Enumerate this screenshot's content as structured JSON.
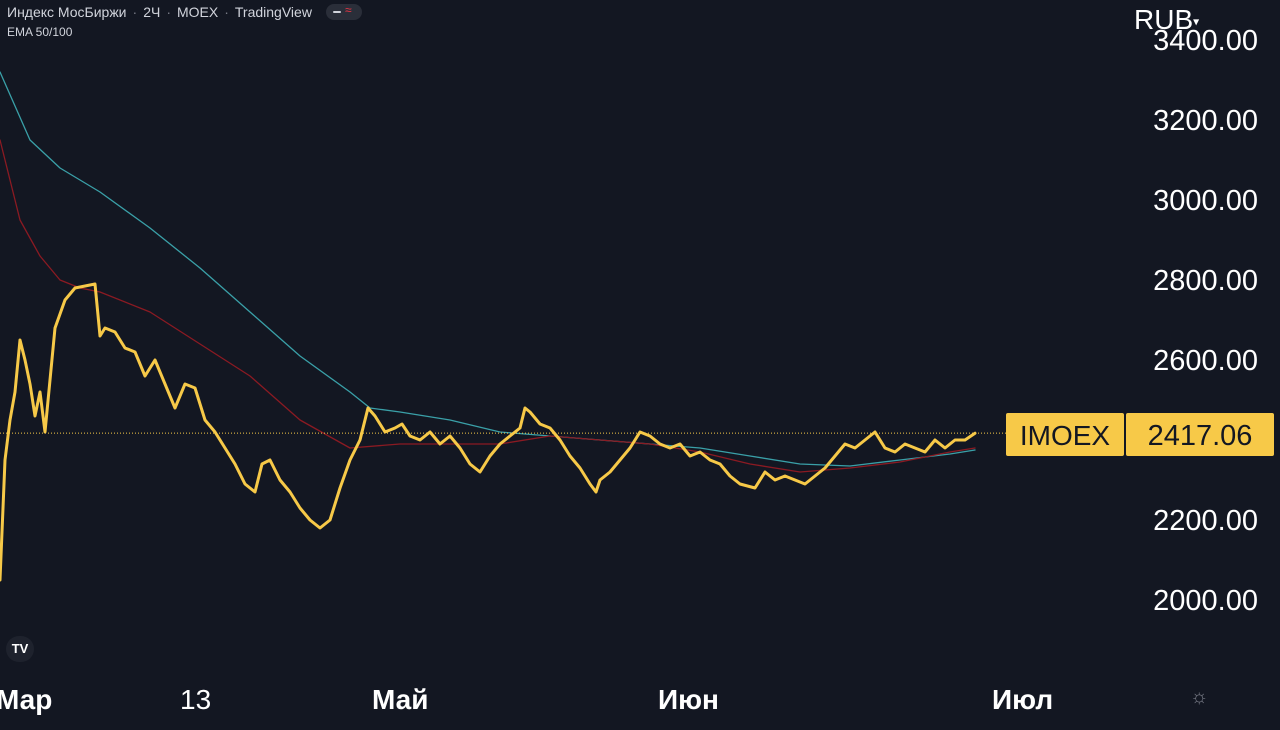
{
  "header": {
    "symbol_name": "Индекс МосБиржи",
    "interval": "2Ч",
    "exchange": "MOEX",
    "source": "TradingView",
    "indicator": "EMA 50/100"
  },
  "price_scale": {
    "currency": "RUB"
  },
  "last_price": {
    "ticker": "IMOEX",
    "value": "2417.06"
  },
  "icons": [
    "visibility-toggle-icon",
    "tradingview-logo-icon",
    "chevron-down-icon",
    "settings-icon"
  ],
  "colors": {
    "background": "#131722",
    "price_line": "#f7c948",
    "ema50": "#8b1a22",
    "ema100": "#3aa0a8",
    "label_bg": "#f7c948"
  },
  "chart_data": {
    "type": "line",
    "title": "Индекс МосБиржи",
    "ylim": [
      1850,
      3450
    ],
    "y_ticks": [
      2000,
      2200,
      2400,
      2600,
      2800,
      3000,
      3200,
      3400
    ],
    "y_tick_labels": [
      "2000.00",
      "2200.00",
      "2600.00",
      "2800.00",
      "3000.00",
      "3200.00",
      "3400.00"
    ],
    "x_labels": [
      "Мар",
      "13",
      "Май",
      "Июн",
      "Июл"
    ],
    "legend": "none",
    "series": [
      {
        "name": "IMOEX",
        "color": "#f7c948",
        "x": [
          0,
          5,
          10,
          15,
          20,
          25,
          30,
          35,
          40,
          45,
          55,
          65,
          75,
          85,
          95,
          100,
          105,
          115,
          125,
          135,
          145,
          155,
          165,
          175,
          185,
          195,
          205,
          215,
          220,
          225,
          235,
          245,
          255,
          262,
          270,
          280,
          290,
          300,
          310,
          320,
          325,
          330,
          340,
          350,
          360,
          368,
          375,
          385,
          395,
          402,
          410,
          420,
          430,
          440,
          450,
          460,
          470,
          480,
          490,
          500,
          510,
          520,
          525,
          530,
          540,
          550,
          560,
          570,
          580,
          590,
          596,
          600,
          610,
          620,
          630,
          640,
          650,
          660,
          670,
          680,
          690,
          700,
          710,
          720,
          730,
          740,
          755,
          765,
          775,
          785,
          795,
          805,
          815,
          825,
          835,
          845,
          855,
          865,
          875,
          885,
          895,
          905,
          915,
          925,
          935,
          945,
          955,
          965,
          975
        ],
        "values": [
          2050,
          2350,
          2450,
          2520,
          2650,
          2600,
          2540,
          2460,
          2520,
          2420,
          2680,
          2750,
          2780,
          2785,
          2790,
          2660,
          2680,
          2670,
          2630,
          2620,
          2560,
          2600,
          2540,
          2480,
          2540,
          2530,
          2450,
          2420,
          2400,
          2380,
          2340,
          2290,
          2270,
          2340,
          2350,
          2300,
          2270,
          2230,
          2200,
          2180,
          2190,
          2200,
          2280,
          2350,
          2400,
          2480,
          2460,
          2420,
          2430,
          2440,
          2410,
          2400,
          2420,
          2390,
          2410,
          2380,
          2340,
          2320,
          2360,
          2390,
          2410,
          2430,
          2480,
          2470,
          2440,
          2430,
          2400,
          2360,
          2330,
          2290,
          2270,
          2300,
          2320,
          2350,
          2380,
          2420,
          2410,
          2390,
          2380,
          2390,
          2360,
          2370,
          2350,
          2340,
          2310,
          2290,
          2280,
          2320,
          2300,
          2310,
          2300,
          2290,
          2310,
          2330,
          2360,
          2390,
          2380,
          2400,
          2420,
          2380,
          2370,
          2390,
          2380,
          2370,
          2400,
          2380,
          2400,
          2400,
          2417
        ]
      },
      {
        "name": "EMA 50",
        "color": "#8b1a22",
        "x": [
          0,
          20,
          40,
          60,
          80,
          100,
          150,
          200,
          250,
          300,
          350,
          400,
          450,
          500,
          550,
          600,
          650,
          700,
          750,
          800,
          850,
          900,
          950,
          975
        ],
        "values": [
          3150,
          2950,
          2860,
          2800,
          2780,
          2770,
          2720,
          2640,
          2560,
          2450,
          2380,
          2390,
          2390,
          2390,
          2410,
          2400,
          2390,
          2370,
          2340,
          2320,
          2330,
          2345,
          2370,
          2380
        ]
      },
      {
        "name": "EMA 100",
        "color": "#3aa0a8",
        "x": [
          0,
          30,
          60,
          100,
          150,
          200,
          250,
          300,
          350,
          370,
          400,
          450,
          500,
          550,
          600,
          650,
          700,
          750,
          800,
          850,
          900,
          950,
          975
        ],
        "values": [
          3320,
          3150,
          3080,
          3020,
          2930,
          2830,
          2720,
          2610,
          2520,
          2480,
          2470,
          2450,
          2420,
          2410,
          2400,
          2390,
          2380,
          2360,
          2340,
          2335,
          2350,
          2365,
          2375
        ]
      }
    ]
  }
}
